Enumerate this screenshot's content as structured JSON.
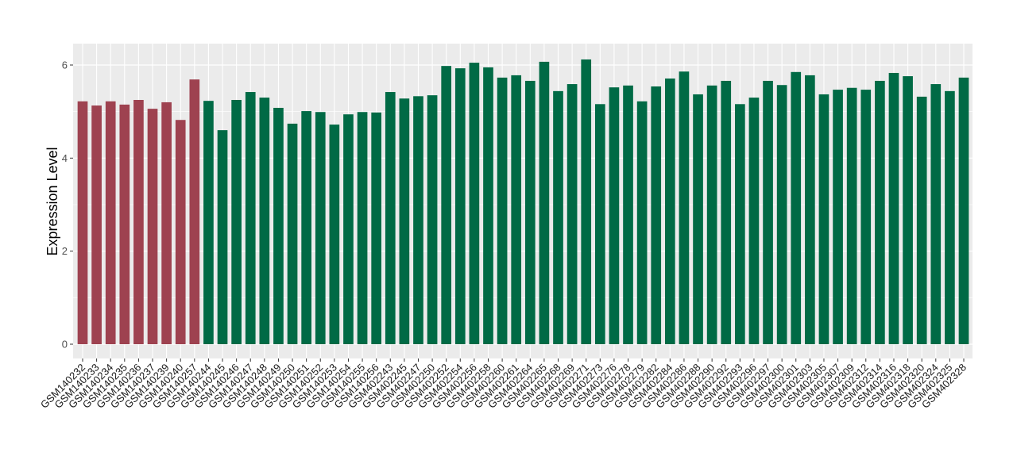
{
  "chart_data": {
    "type": "bar",
    "title": "",
    "xlabel": "",
    "ylabel": "Expression Level",
    "ylim": [
      -0.3,
      6.4
    ],
    "yticks": [
      0,
      2,
      4,
      6
    ],
    "grid": true,
    "legend": "none",
    "colors": {
      "group1": "#9e4250",
      "group2": "#006a45",
      "panel": "#ebebeb",
      "grid": "#ffffff"
    },
    "categories": [
      "GSM140232",
      "GSM140233",
      "GSM140234",
      "GSM140235",
      "GSM140236",
      "GSM140237",
      "GSM140239",
      "GSM140240",
      "GSM140257",
      "GSM140244",
      "GSM140245",
      "GSM140246",
      "GSM140247",
      "GSM140248",
      "GSM140249",
      "GSM140250",
      "GSM140251",
      "GSM140252",
      "GSM140253",
      "GSM140254",
      "GSM140255",
      "GSM140256",
      "GSM402243",
      "GSM402245",
      "GSM402247",
      "GSM402250",
      "GSM402252",
      "GSM402254",
      "GSM402256",
      "GSM402258",
      "GSM402260",
      "GSM402261",
      "GSM402264",
      "GSM402265",
      "GSM402268",
      "GSM402269",
      "GSM402271",
      "GSM402273",
      "GSM402276",
      "GSM402278",
      "GSM402279",
      "GSM402282",
      "GSM402284",
      "GSM402286",
      "GSM402288",
      "GSM402290",
      "GSM402292",
      "GSM402293",
      "GSM402296",
      "GSM402297",
      "GSM402300",
      "GSM402301",
      "GSM402303",
      "GSM402305",
      "GSM402307",
      "GSM402309",
      "GSM402312",
      "GSM402314",
      "GSM402316",
      "GSM402318",
      "GSM402320",
      "GSM402324",
      "GSM402325",
      "GSM402328"
    ],
    "values": [
      5.22,
      5.13,
      5.22,
      5.15,
      5.25,
      5.06,
      5.2,
      4.82,
      5.69,
      5.23,
      4.6,
      5.25,
      5.42,
      5.3,
      5.08,
      4.74,
      5.01,
      4.99,
      4.72,
      4.94,
      4.99,
      4.98,
      5.42,
      5.28,
      5.33,
      5.35,
      5.98,
      5.93,
      6.05,
      5.95,
      5.73,
      5.78,
      5.66,
      6.07,
      5.44,
      5.59,
      6.12,
      5.16,
      5.52,
      5.56,
      5.22,
      5.54,
      5.71,
      5.86,
      5.37,
      5.56,
      5.66,
      5.16,
      5.3,
      5.66,
      5.57,
      5.85,
      5.78,
      5.37,
      5.47,
      5.51,
      5.47,
      5.66,
      5.83,
      5.76,
      5.32,
      5.59,
      5.44,
      5.73
    ],
    "groups": [
      1,
      1,
      1,
      1,
      1,
      1,
      1,
      1,
      1,
      2,
      2,
      2,
      2,
      2,
      2,
      2,
      2,
      2,
      2,
      2,
      2,
      2,
      2,
      2,
      2,
      2,
      2,
      2,
      2,
      2,
      2,
      2,
      2,
      2,
      2,
      2,
      2,
      2,
      2,
      2,
      2,
      2,
      2,
      2,
      2,
      2,
      2,
      2,
      2,
      2,
      2,
      2,
      2,
      2,
      2,
      2,
      2,
      2,
      2,
      2,
      2,
      2,
      2,
      2
    ]
  }
}
